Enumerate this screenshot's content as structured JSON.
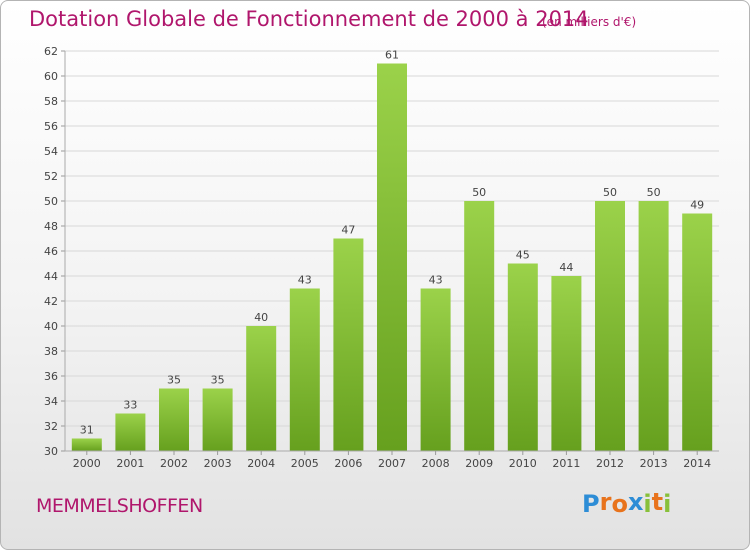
{
  "title": "Dotation Globale de Fonctionnement de 2000 à 2014",
  "subtitle": "(en milliers d'€)",
  "commune": "MEMMELSHOFFEN",
  "logo": {
    "letters": [
      "P",
      "r",
      "o",
      "x",
      "i",
      "t",
      "i"
    ],
    "colors": [
      "#2d8dd6",
      "#e8731c",
      "#e8731c",
      "#2d8dd6",
      "#88c03a",
      "#e8731c",
      "#88c03a"
    ]
  },
  "chart_data": {
    "type": "bar",
    "categories": [
      "2000",
      "2001",
      "2002",
      "2003",
      "2004",
      "2005",
      "2006",
      "2007",
      "2008",
      "2009",
      "2010",
      "2011",
      "2012",
      "2013",
      "2014"
    ],
    "values": [
      31,
      33,
      35,
      35,
      40,
      43,
      47,
      61,
      43,
      50,
      45,
      44,
      50,
      50,
      49
    ],
    "ylim": [
      30,
      62
    ],
    "yticks": [
      30,
      32,
      34,
      36,
      38,
      40,
      42,
      44,
      46,
      48,
      50,
      52,
      54,
      56,
      58,
      60,
      62
    ],
    "grid": true,
    "bar_color": "#7ab52d"
  }
}
